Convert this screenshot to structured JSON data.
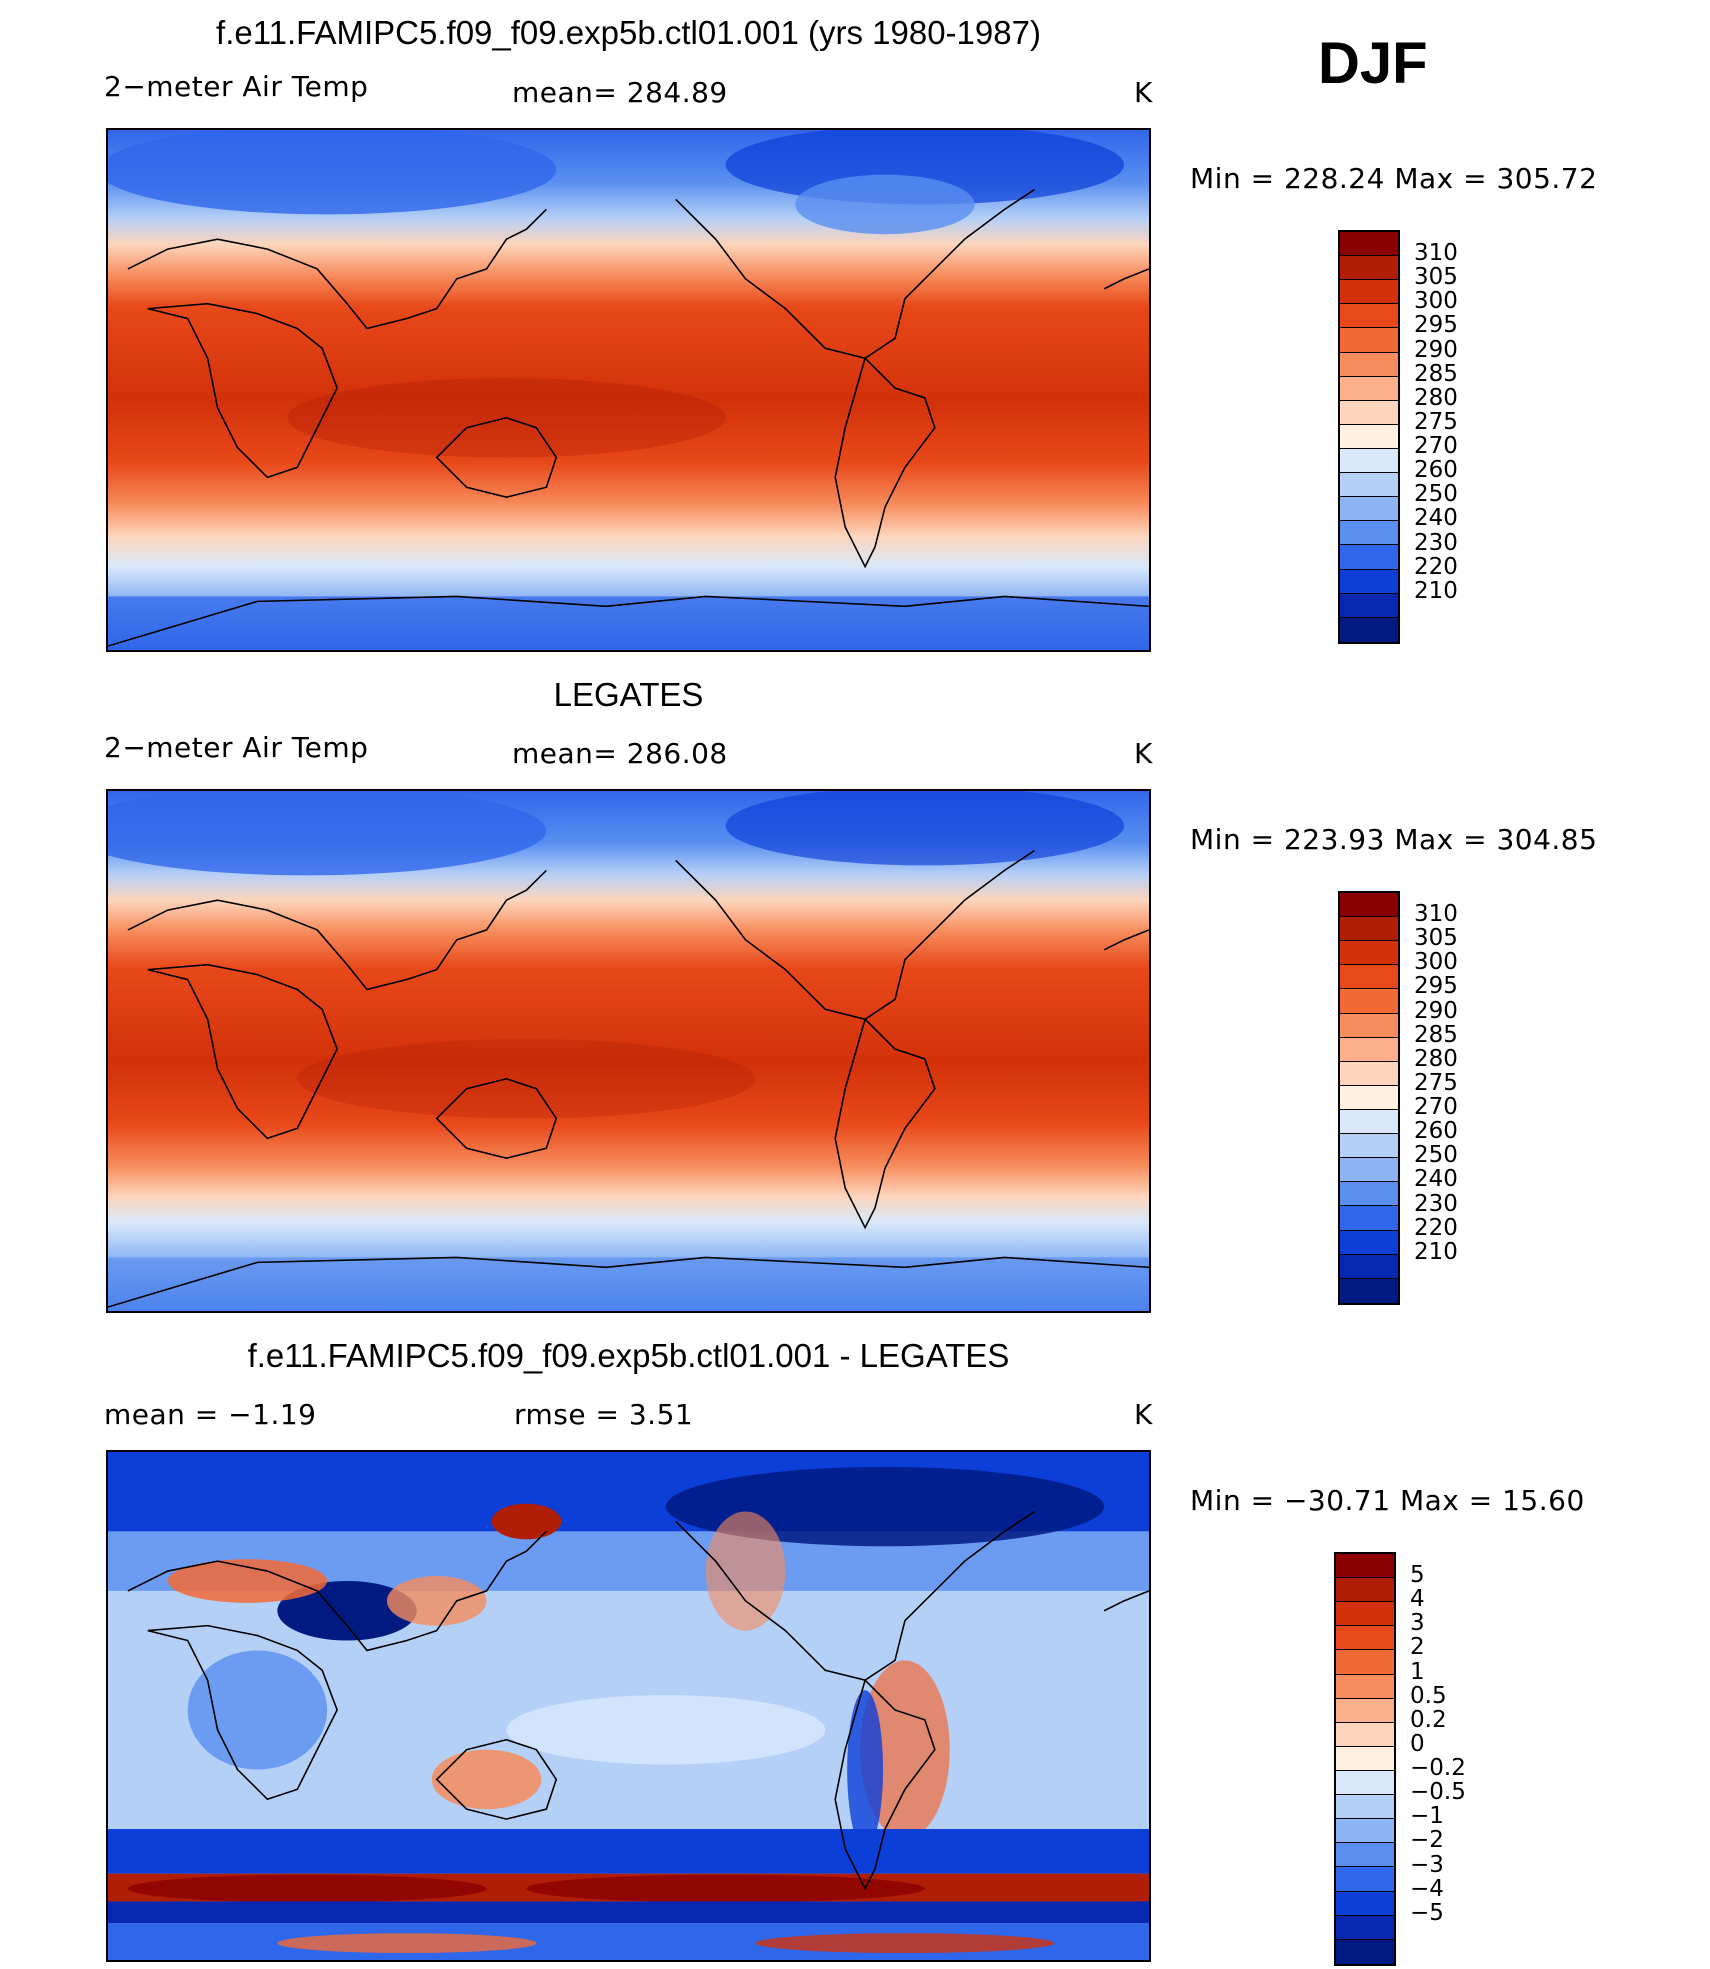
{
  "season": "DJF",
  "panels": [
    {
      "title": "f.e11.FAMIPC5.f09_f09.exp5b.ctl01.001 (yrs 1980-1987)",
      "left_label": "2−meter Air Temp",
      "center_label": "mean=  284.89",
      "units": "K",
      "minmax": "Min  =  228.24  Max  =  305.72",
      "colorbar": {
        "labels": [
          "310",
          "305",
          "300",
          "295",
          "290",
          "285",
          "280",
          "275",
          "270",
          "260",
          "250",
          "240",
          "230",
          "220",
          "210"
        ],
        "colors": [
          "#8b0000",
          "#b01e05",
          "#d2310a",
          "#e8491a",
          "#f26a36",
          "#f78c5c",
          "#fbb08b",
          "#fdd5bc",
          "#fff0e0",
          "#d9e9fb",
          "#b5d0f7",
          "#8db4f3",
          "#5a8ff0",
          "#2f67ea",
          "#0c3ed8",
          "#0628b0",
          "#011a82"
        ]
      }
    },
    {
      "title": "LEGATES",
      "left_label": "2−meter Air Temp",
      "center_label": "mean=  286.08",
      "units": "K",
      "minmax": "Min  =  223.93  Max  =  304.85",
      "colorbar": {
        "labels": [
          "310",
          "305",
          "300",
          "295",
          "290",
          "285",
          "280",
          "275",
          "270",
          "260",
          "250",
          "240",
          "230",
          "220",
          "210"
        ],
        "colors": [
          "#8b0000",
          "#b01e05",
          "#d2310a",
          "#e8491a",
          "#f26a36",
          "#f78c5c",
          "#fbb08b",
          "#fdd5bc",
          "#fff0e0",
          "#d9e9fb",
          "#b5d0f7",
          "#8db4f3",
          "#5a8ff0",
          "#2f67ea",
          "#0c3ed8",
          "#0628b0",
          "#011a82"
        ]
      }
    },
    {
      "title": "f.e11.FAMIPC5.f09_f09.exp5b.ctl01.001 - LEGATES",
      "left_label": "mean  =    −1.19",
      "center_label": "rmse  =     3.51",
      "units": "K",
      "minmax": "Min  =  −30.71  Max  =    15.60",
      "colorbar": {
        "labels": [
          "5",
          "4",
          "3",
          "2",
          "1",
          "0.5",
          "0.2",
          "0",
          "−0.2",
          "−0.5",
          "−1",
          "−2",
          "−3",
          "−4",
          "−5"
        ],
        "colors": [
          "#8b0000",
          "#b01e05",
          "#d2310a",
          "#e8491a",
          "#f26a36",
          "#f78c5c",
          "#fbb08b",
          "#fdd5bc",
          "#fff0e0",
          "#d9e9fb",
          "#b5d0f7",
          "#8db4f3",
          "#5a8ff0",
          "#2f67ea",
          "#0c3ed8",
          "#0628b0",
          "#011a82"
        ]
      }
    }
  ]
}
